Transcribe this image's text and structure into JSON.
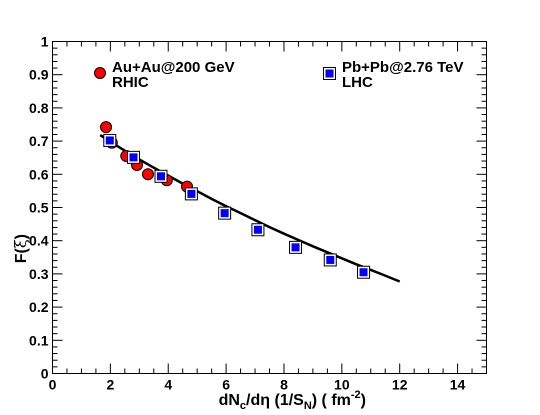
{
  "chart_data": {
    "type": "scatter",
    "xlabel": {
      "main": "dN",
      "sub1": "c",
      "mid": "/dη (1/S",
      "sub2": "N",
      "tail": ") ( fm",
      "sup": "-2",
      "end": ")"
    },
    "ylabel": {
      "main": "F(",
      "greek": "ξ",
      "end": ")"
    },
    "xlim": [
      0,
      15
    ],
    "ylim": [
      0,
      1
    ],
    "x_ticks": [
      0,
      2,
      4,
      6,
      8,
      10,
      12,
      14
    ],
    "y_ticks": [
      0,
      0.1,
      0.2,
      0.3,
      0.4,
      0.5,
      0.6,
      0.7,
      0.8,
      0.9,
      1
    ],
    "x_tick_labels": [
      "0",
      "2",
      "4",
      "6",
      "8",
      "10",
      "12",
      "14"
    ],
    "y_tick_labels": [
      "0",
      "0.1",
      "0.2",
      "0.3",
      "0.4",
      "0.5",
      "0.6",
      "0.7",
      "0.8",
      "0.9",
      "1"
    ],
    "grid": false,
    "series": [
      {
        "name": "Au+Au@200 GeV",
        "name_line2": "RHIC",
        "marker": "circle",
        "color": "#ff0000",
        "points": [
          [
            1.85,
            0.742
          ],
          [
            2.05,
            0.695
          ],
          [
            2.55,
            0.655
          ],
          [
            2.92,
            0.628
          ],
          [
            3.3,
            0.6
          ],
          [
            3.95,
            0.582
          ],
          [
            4.65,
            0.563
          ]
        ]
      },
      {
        "name": "Pb+Pb@2.76 TeV",
        "name_line2": "LHC",
        "marker": "square",
        "color": "#0000ff",
        "points": [
          [
            1.98,
            0.702
          ],
          [
            2.8,
            0.651
          ],
          [
            3.75,
            0.594
          ],
          [
            4.8,
            0.541
          ],
          [
            5.95,
            0.483
          ],
          [
            7.1,
            0.433
          ],
          [
            8.4,
            0.38
          ],
          [
            9.6,
            0.342
          ],
          [
            10.75,
            0.305
          ]
        ]
      }
    ],
    "fit_curve": [
      [
        1.65,
        0.718
      ],
      [
        2.0,
        0.698
      ],
      [
        2.5,
        0.671
      ],
      [
        3.0,
        0.645
      ],
      [
        3.5,
        0.62
      ],
      [
        4.0,
        0.596
      ],
      [
        4.5,
        0.572
      ],
      [
        5.0,
        0.549
      ],
      [
        5.5,
        0.526
      ],
      [
        6.0,
        0.504
      ],
      [
        6.5,
        0.483
      ],
      [
        7.0,
        0.462
      ],
      [
        7.5,
        0.441
      ],
      [
        8.0,
        0.421
      ],
      [
        8.5,
        0.402
      ],
      [
        9.0,
        0.383
      ],
      [
        9.5,
        0.365
      ],
      [
        10.0,
        0.347
      ],
      [
        10.5,
        0.329
      ],
      [
        11.0,
        0.312
      ],
      [
        11.5,
        0.295
      ],
      [
        12.0,
        0.277
      ]
    ]
  }
}
